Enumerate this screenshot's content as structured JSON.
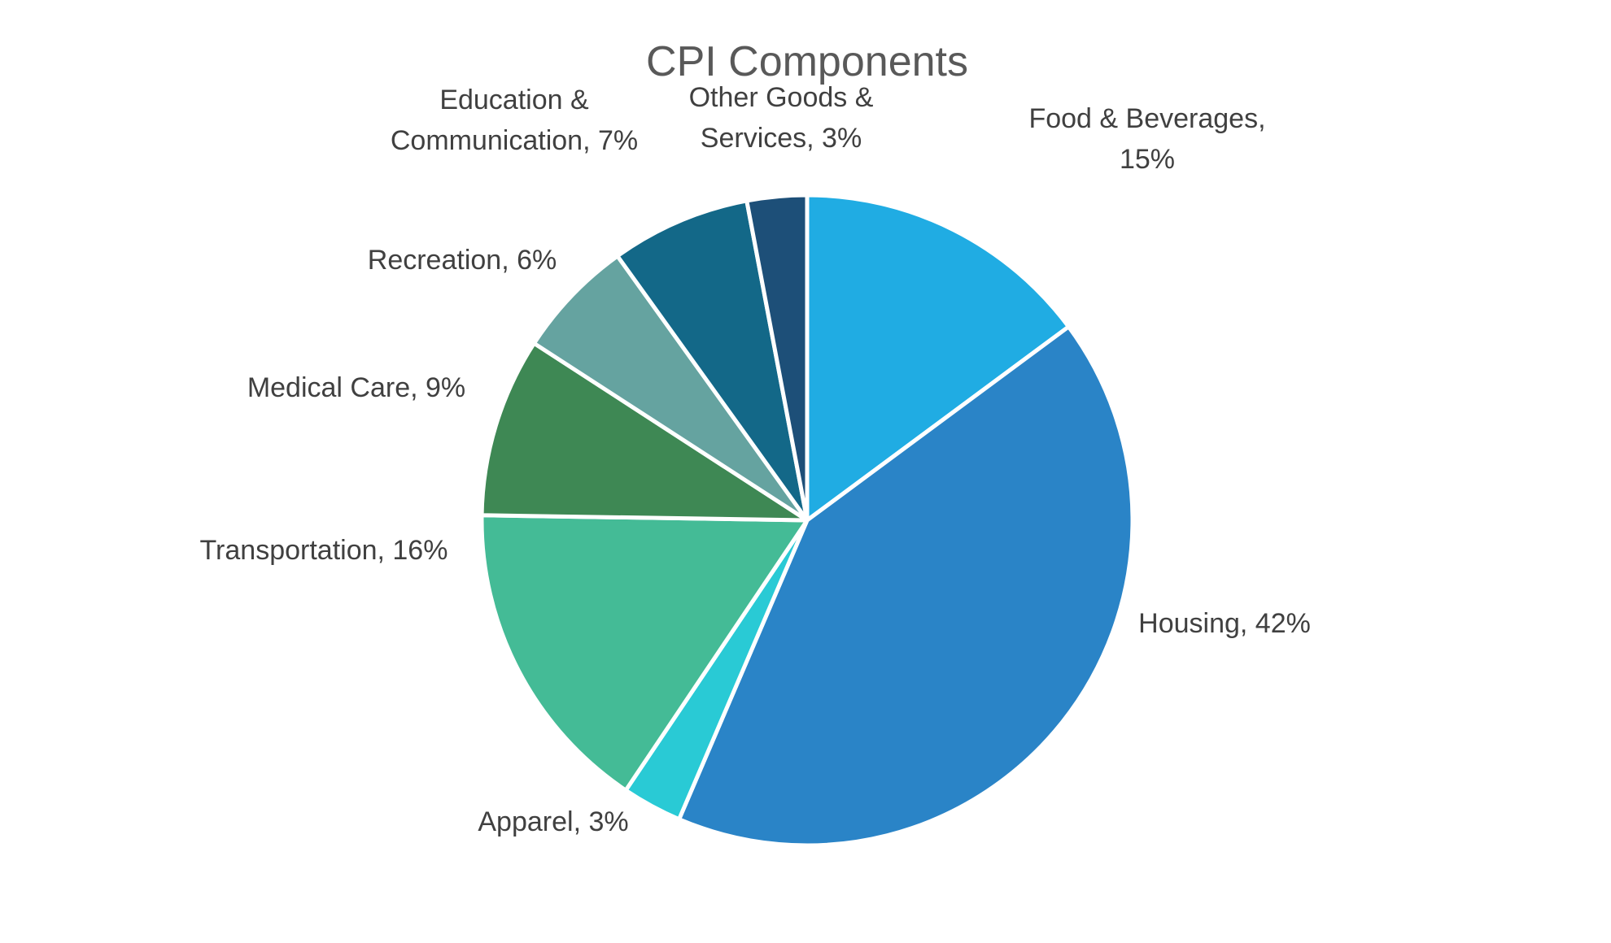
{
  "chart_data": {
    "type": "pie",
    "title": "CPI Components",
    "categories": [
      "Food & Beverages",
      "Housing",
      "Apparel",
      "Transportation",
      "Medical Care",
      "Recreation",
      "Education & Communication",
      "Other Goods & Services"
    ],
    "values": [
      15,
      42,
      3,
      16,
      9,
      6,
      7,
      3
    ],
    "labels": [
      [
        "Food & Beverages,",
        "15%"
      ],
      [
        "Housing, 42%"
      ],
      [
        "Apparel, 3%"
      ],
      [
        "Transportation, 16%"
      ],
      [
        "Medical Care, 9%"
      ],
      [
        "Recreation, 6%"
      ],
      [
        "Education &",
        "Communication, 7%"
      ],
      [
        "Other Goods &",
        "Services, 3%"
      ]
    ],
    "colors": [
      "#20ACE3",
      "#2A84C7",
      "#29CAD5",
      "#44BB96",
      "#3E8854",
      "#65A3A0",
      "#136888",
      "#1D4F78"
    ],
    "start_angle": "12 o'clock",
    "direction": "clockwise",
    "legend": "none (category labels placed outside slices)"
  }
}
